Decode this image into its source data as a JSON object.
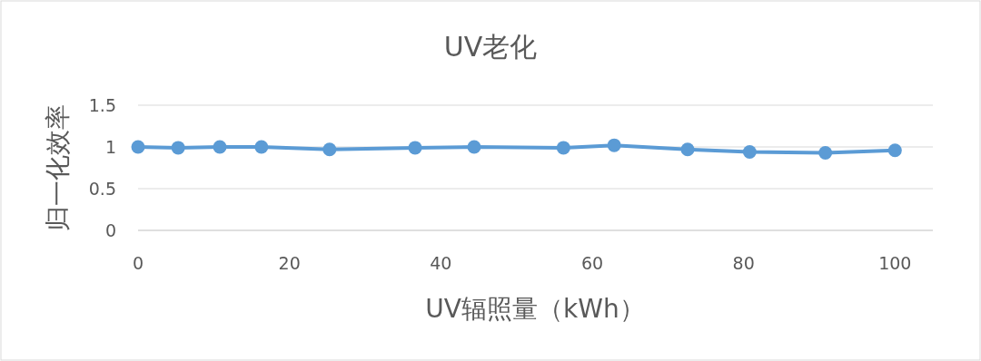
{
  "chart_data": {
    "type": "line",
    "title": "UV老化",
    "xlabel": "UV辐照量（kWh）",
    "ylabel": "归一化效率",
    "x": [
      0,
      5.3,
      10.8,
      16.3,
      25.3,
      36.6,
      44.4,
      56.2,
      62.9,
      72.6,
      80.8,
      90.8,
      100
    ],
    "series": [
      {
        "color": "#5b9bd5",
        "values": [
          1.0,
          0.99,
          1.0,
          1.0,
          0.97,
          0.99,
          1.0,
          0.99,
          1.02,
          0.97,
          0.94,
          0.93,
          0.96
        ]
      }
    ],
    "xlim": [
      0,
      105
    ],
    "ylim": [
      0,
      1.5
    ],
    "xticks": [
      0,
      20,
      40,
      60,
      80,
      100
    ],
    "yticks": [
      0,
      0.5,
      1,
      1.5
    ],
    "grid": "y",
    "marker": "circle",
    "line_style": "solid"
  }
}
